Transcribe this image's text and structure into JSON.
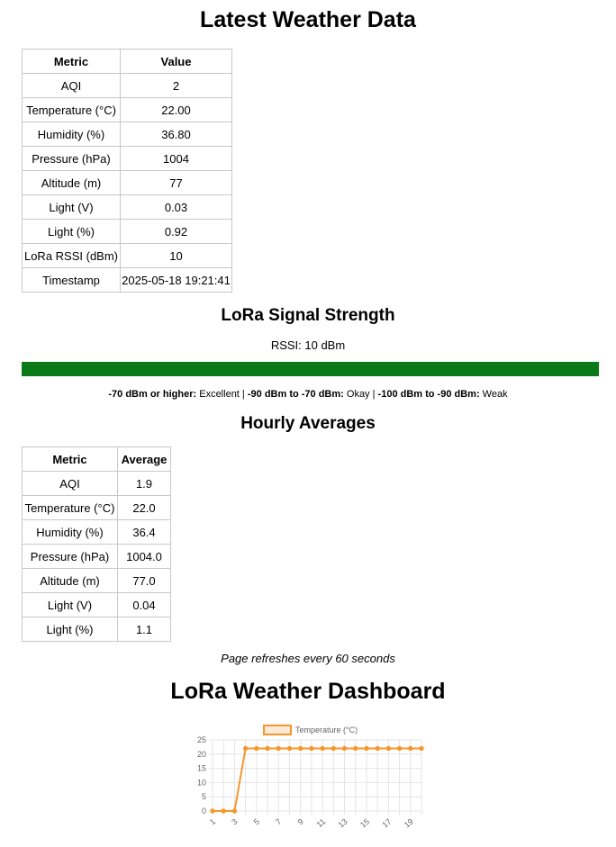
{
  "latest": {
    "title": "Latest Weather Data",
    "headers": [
      "Metric",
      "Value"
    ],
    "rows": [
      [
        "AQI",
        "2"
      ],
      [
        "Temperature (°C)",
        "22.00"
      ],
      [
        "Humidity (%)",
        "36.80"
      ],
      [
        "Pressure (hPa)",
        "1004"
      ],
      [
        "Altitude (m)",
        "77"
      ],
      [
        "Light (V)",
        "0.03"
      ],
      [
        "Light (%)",
        "0.92"
      ],
      [
        "LoRa RSSI (dBm)",
        "10"
      ],
      [
        "Timestamp",
        "2025-05-18 19:21:41"
      ]
    ]
  },
  "signal": {
    "title": "LoRa Signal Strength",
    "rssi_text": "RSSI: 10 dBm",
    "level_percent": 100,
    "bar_color": "#0a7a16",
    "legend": [
      {
        "range": "-70 dBm or higher:",
        "label": "Excellent"
      },
      {
        "range": "-90 dBm to -70 dBm:",
        "label": "Okay"
      },
      {
        "range": "-100 dBm to -90 dBm:",
        "label": "Weak"
      }
    ],
    "separator": "|"
  },
  "hourly": {
    "title": "Hourly Averages",
    "headers": [
      "Metric",
      "Average"
    ],
    "rows": [
      [
        "AQI",
        "1.9"
      ],
      [
        "Temperature (°C)",
        "22.0"
      ],
      [
        "Humidity (%)",
        "36.4"
      ],
      [
        "Pressure (hPa)",
        "1004.0"
      ],
      [
        "Altitude (m)",
        "77.0"
      ],
      [
        "Light (V)",
        "0.04"
      ],
      [
        "Light (%)",
        "1.1"
      ]
    ]
  },
  "refresh_note": "Page refreshes every 60 seconds",
  "dashboard_title": "LoRa Weather Dashboard",
  "chart_data": {
    "type": "line",
    "x": [
      1,
      2,
      3,
      4,
      5,
      6,
      7,
      8,
      9,
      10,
      11,
      12,
      13,
      14,
      15,
      16,
      17,
      18,
      19,
      20
    ],
    "x_tick_labels": [
      "1",
      "3",
      "5",
      "7",
      "9",
      "11",
      "13",
      "15",
      "17",
      "19"
    ],
    "series": [
      {
        "name": "Temperature (°C)",
        "color": "#f7962b",
        "values": [
          0,
          0,
          0,
          22,
          22,
          22,
          22,
          22,
          22,
          22,
          22,
          22,
          22,
          22,
          22,
          22,
          22,
          22,
          22,
          22
        ]
      }
    ],
    "ylim": [
      0,
      25
    ],
    "y_ticks": [
      0,
      5,
      10,
      15,
      20,
      25
    ],
    "grid": true,
    "legend_position": "top"
  }
}
